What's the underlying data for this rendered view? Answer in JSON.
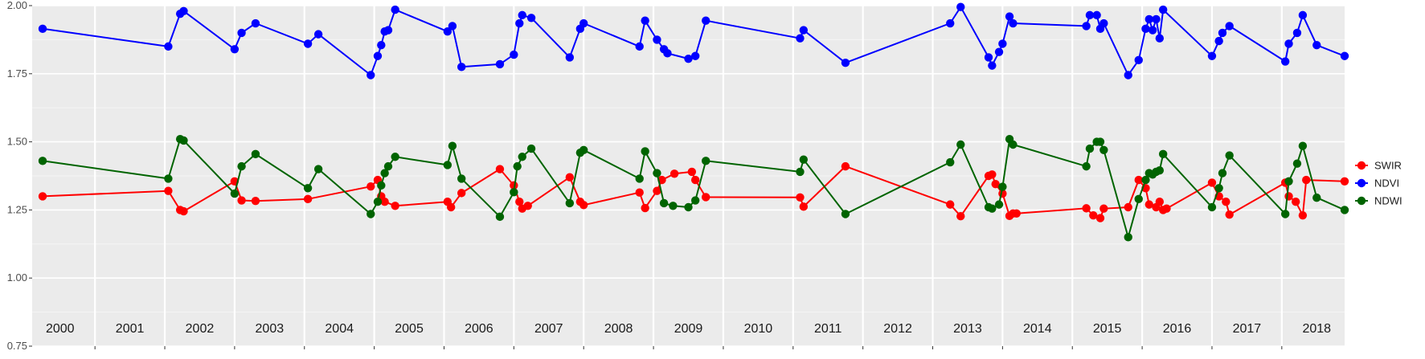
{
  "chart_data": {
    "type": "line",
    "title": "",
    "xlabel": "",
    "ylabel": "",
    "ylim": [
      0.75,
      2.0
    ],
    "xlim": [
      1999.6,
      2018.4
    ],
    "y_ticks": [
      0.75,
      1.0,
      1.25,
      1.5,
      1.75,
      2.0
    ],
    "y_tick_labels": [
      "0.75",
      "1.00",
      "1.25",
      "1.50",
      "1.75",
      "2.00"
    ],
    "year_labels": [
      "2000",
      "2001",
      "2002",
      "2003",
      "2004",
      "2005",
      "2006",
      "2007",
      "2008",
      "2009",
      "2010",
      "2011",
      "2012",
      "2013",
      "2014",
      "2015",
      "2016",
      "2017",
      "2018"
    ],
    "grid": true,
    "legend_position": "right",
    "series": [
      {
        "name": "SWIR",
        "color": "#ff0000",
        "x": [
          1999.75,
          2001.55,
          2001.72,
          2001.77,
          2002.5,
          2002.6,
          2002.8,
          2003.55,
          2004.45,
          2004.55,
          2004.6,
          2004.65,
          2004.8,
          2005.55,
          2005.6,
          2005.75,
          2006.3,
          2006.5,
          2006.58,
          2006.62,
          2006.7,
          2007.3,
          2007.45,
          2007.5,
          2008.3,
          2008.38,
          2008.55,
          2008.62,
          2008.8,
          2009.05,
          2009.1,
          2009.25,
          2010.6,
          2010.65,
          2011.25,
          2012.75,
          2012.9,
          2013.3,
          2013.35,
          2013.4,
          2013.5,
          2013.6,
          2013.65,
          2013.7,
          2014.7,
          2014.8,
          2014.9,
          2014.95,
          2015.3,
          2015.45,
          2015.55,
          2015.6,
          2015.7,
          2015.75,
          2015.8,
          2015.85,
          2016.5,
          2016.6,
          2016.7,
          2016.75,
          2017.55,
          2017.6,
          2017.7,
          2017.8,
          2017.85,
          2018.4
        ],
        "y": [
          1.3,
          1.32,
          1.25,
          1.245,
          1.355,
          1.285,
          1.283,
          1.29,
          1.336,
          1.36,
          1.3,
          1.28,
          1.265,
          1.28,
          1.26,
          1.312,
          1.4,
          1.34,
          1.28,
          1.255,
          1.265,
          1.37,
          1.28,
          1.268,
          1.314,
          1.257,
          1.32,
          1.36,
          1.383,
          1.39,
          1.36,
          1.297,
          1.296,
          1.262,
          1.41,
          1.27,
          1.227,
          1.375,
          1.38,
          1.345,
          1.31,
          1.228,
          1.237,
          1.237,
          1.256,
          1.23,
          1.22,
          1.255,
          1.26,
          1.36,
          1.33,
          1.27,
          1.26,
          1.28,
          1.25,
          1.255,
          1.35,
          1.3,
          1.28,
          1.233,
          1.35,
          1.3,
          1.28,
          1.23,
          1.36,
          1.355
        ]
      },
      {
        "name": "NDVI",
        "color": "#0000ff",
        "x": [
          1999.75,
          2001.55,
          2001.72,
          2001.77,
          2002.5,
          2002.6,
          2002.8,
          2003.55,
          2003.7,
          2004.45,
          2004.55,
          2004.6,
          2004.65,
          2004.7,
          2004.8,
          2005.55,
          2005.62,
          2005.75,
          2006.3,
          2006.5,
          2006.58,
          2006.62,
          2006.75,
          2007.3,
          2007.45,
          2007.5,
          2008.3,
          2008.38,
          2008.55,
          2008.65,
          2008.7,
          2009.0,
          2009.1,
          2009.25,
          2010.6,
          2010.65,
          2011.25,
          2012.75,
          2012.9,
          2013.3,
          2013.35,
          2013.45,
          2013.5,
          2013.6,
          2013.65,
          2014.7,
          2014.75,
          2014.85,
          2014.9,
          2014.95,
          2015.3,
          2015.45,
          2015.55,
          2015.6,
          2015.65,
          2015.7,
          2015.75,
          2015.8,
          2016.5,
          2016.6,
          2016.65,
          2016.75,
          2017.55,
          2017.6,
          2017.72,
          2017.8,
          2018.0,
          2018.4
        ],
        "y": [
          1.915,
          1.85,
          1.97,
          1.98,
          1.84,
          1.9,
          1.935,
          1.86,
          1.895,
          1.745,
          1.815,
          1.855,
          1.905,
          1.91,
          1.985,
          1.905,
          1.925,
          1.775,
          1.785,
          1.82,
          1.935,
          1.965,
          1.955,
          1.81,
          1.915,
          1.935,
          1.85,
          1.945,
          1.875,
          1.84,
          1.825,
          1.805,
          1.815,
          1.945,
          1.88,
          1.91,
          1.79,
          1.935,
          1.995,
          1.81,
          1.78,
          1.83,
          1.86,
          1.96,
          1.935,
          1.925,
          1.965,
          1.965,
          1.915,
          1.935,
          1.745,
          1.8,
          1.915,
          1.95,
          1.91,
          1.95,
          1.88,
          1.985,
          1.815,
          1.87,
          1.9,
          1.925,
          1.795,
          1.86,
          1.9,
          1.965,
          1.855,
          1.815
        ]
      },
      {
        "name": "NDWI",
        "color": "#006400",
        "x": [
          1999.75,
          2001.55,
          2001.72,
          2001.77,
          2002.5,
          2002.6,
          2002.8,
          2003.55,
          2003.7,
          2004.45,
          2004.55,
          2004.6,
          2004.65,
          2004.7,
          2004.8,
          2005.55,
          2005.62,
          2005.75,
          2006.3,
          2006.5,
          2006.55,
          2006.62,
          2006.75,
          2007.3,
          2007.45,
          2007.5,
          2008.3,
          2008.38,
          2008.55,
          2008.65,
          2008.78,
          2009.0,
          2009.1,
          2009.25,
          2010.6,
          2010.65,
          2011.25,
          2012.75,
          2012.9,
          2013.3,
          2013.35,
          2013.45,
          2013.5,
          2013.6,
          2013.65,
          2014.7,
          2014.75,
          2014.85,
          2014.9,
          2014.95,
          2015.3,
          2015.45,
          2015.55,
          2015.6,
          2015.65,
          2015.7,
          2015.75,
          2015.8,
          2016.5,
          2016.6,
          2016.65,
          2016.75,
          2017.55,
          2017.6,
          2017.72,
          2017.8,
          2018.0,
          2018.4
        ],
        "y": [
          1.43,
          1.365,
          1.51,
          1.505,
          1.31,
          1.41,
          1.455,
          1.33,
          1.4,
          1.235,
          1.28,
          1.34,
          1.385,
          1.41,
          1.445,
          1.415,
          1.485,
          1.365,
          1.225,
          1.315,
          1.41,
          1.445,
          1.475,
          1.275,
          1.46,
          1.47,
          1.365,
          1.465,
          1.385,
          1.275,
          1.265,
          1.26,
          1.285,
          1.43,
          1.39,
          1.435,
          1.235,
          1.425,
          1.49,
          1.26,
          1.255,
          1.27,
          1.335,
          1.51,
          1.49,
          1.41,
          1.475,
          1.5,
          1.5,
          1.47,
          1.15,
          1.29,
          1.36,
          1.385,
          1.38,
          1.39,
          1.395,
          1.455,
          1.26,
          1.33,
          1.385,
          1.45,
          1.235,
          1.355,
          1.42,
          1.485,
          1.295,
          1.25
        ]
      }
    ]
  }
}
